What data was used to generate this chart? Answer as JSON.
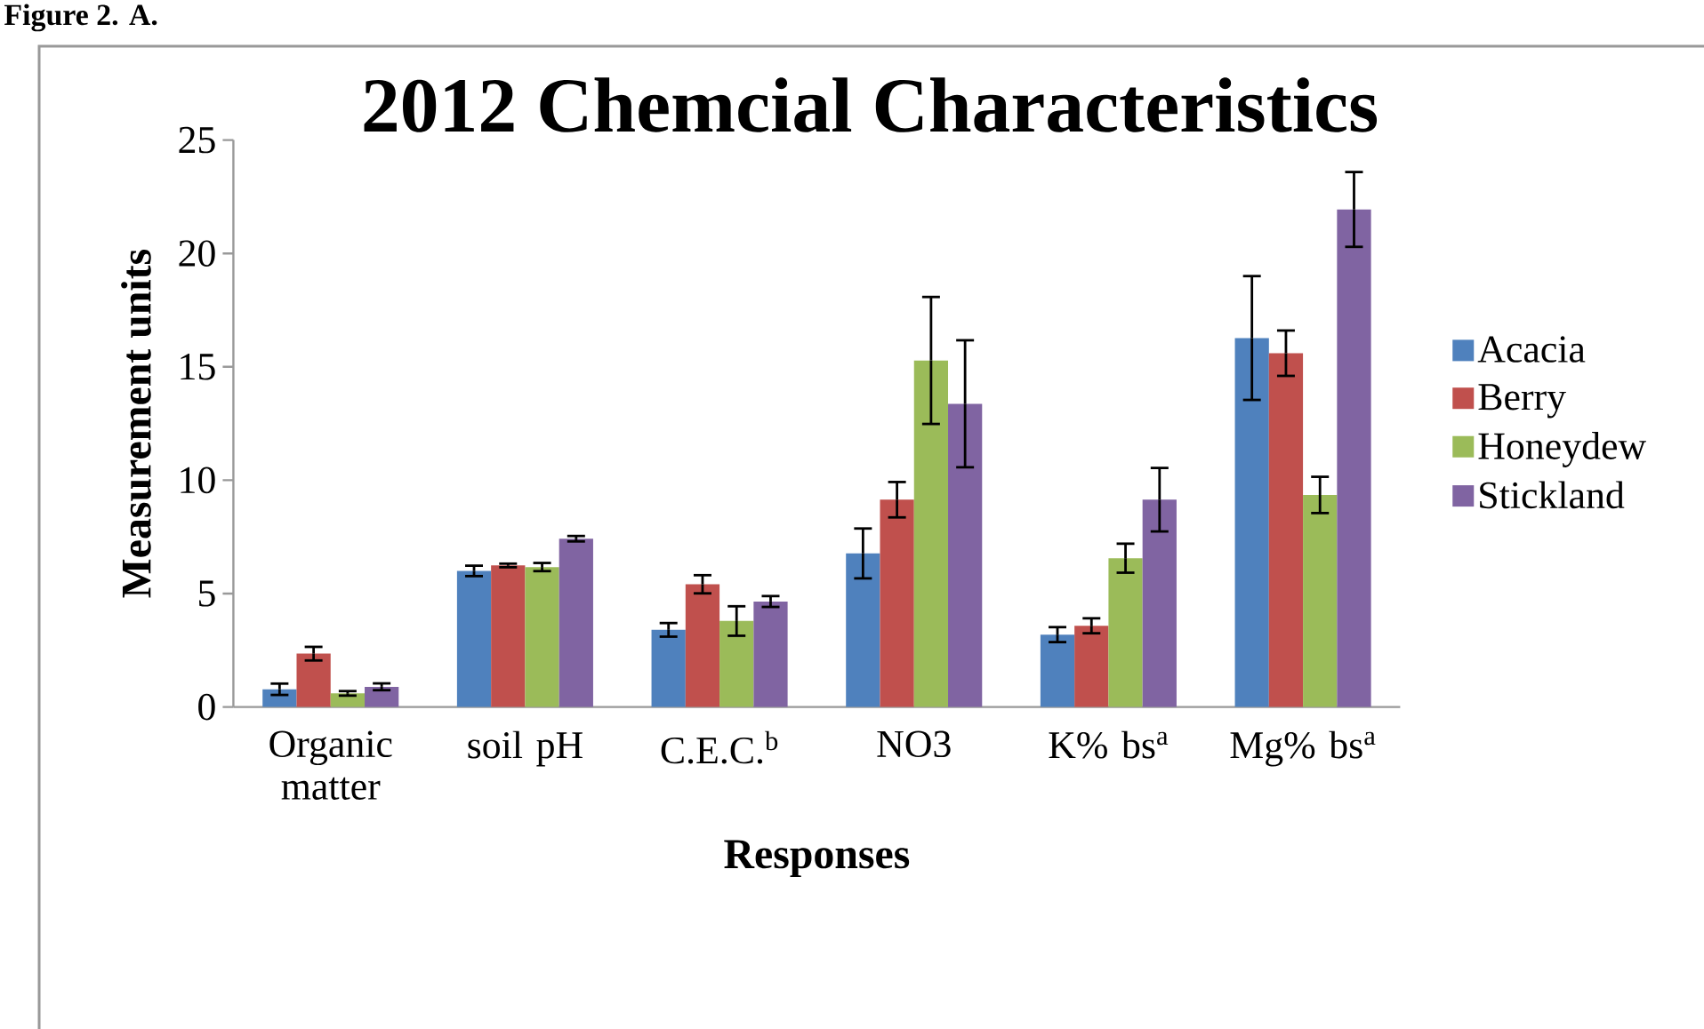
{
  "chart_data": {
    "type": "bar",
    "title": "2012 Chemcial Characteristics",
    "xlabel": "Responses",
    "ylabel": "Measurement units",
    "annotations": [
      "Figure 2. A."
    ],
    "categories": [
      "Organic matter",
      "soil pH",
      "C.E.C.$^{b}$",
      "NO3",
      "K% bs$^{a}$",
      "Mg% bs$^{a}$"
    ],
    "series": [
      {
        "name": "Acacia",
        "color": "#4f81bd",
        "values": [
          0.78,
          6.0,
          3.4,
          6.77,
          3.19,
          16.27
        ],
        "errors": [
          0.25,
          0.23,
          0.3,
          1.1,
          0.33,
          2.73
        ]
      },
      {
        "name": "Berry",
        "color": "#c0504d",
        "values": [
          2.35,
          6.24,
          5.41,
          9.14,
          3.58,
          15.6
        ],
        "errors": [
          0.3,
          0.08,
          0.4,
          0.78,
          0.33,
          1.0
        ]
      },
      {
        "name": "Honeydew",
        "color": "#9bbb59",
        "values": [
          0.6,
          6.17,
          3.79,
          15.28,
          6.56,
          9.35
        ],
        "errors": [
          0.1,
          0.18,
          0.65,
          2.8,
          0.64,
          0.8
        ]
      },
      {
        "name": "Stickland",
        "color": "#8064a2",
        "values": [
          0.89,
          7.42,
          4.65,
          13.37,
          9.14,
          21.94
        ],
        "errors": [
          0.15,
          0.12,
          0.24,
          2.8,
          1.4,
          1.65
        ]
      }
    ],
    "ylim": [
      0,
      25
    ],
    "yticks": [
      0,
      5,
      10,
      15,
      20,
      25
    ],
    "legend": "right"
  }
}
